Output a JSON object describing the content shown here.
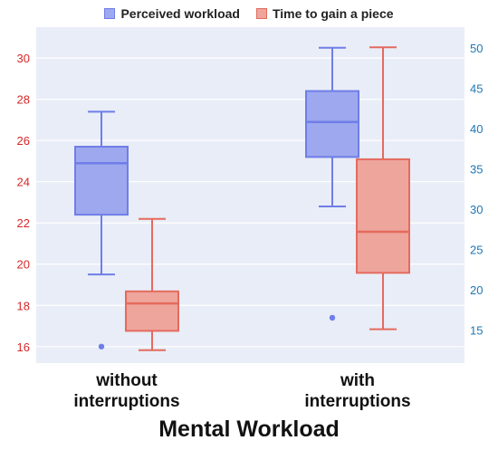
{
  "chart_data": {
    "type": "box",
    "title": "",
    "xlabel": "Mental Workload",
    "categories": [
      "without\ninterruptions",
      "with\ninterruptions"
    ],
    "legend_position": "top-center",
    "grid": true,
    "y_left": {
      "range": [
        15.2,
        31.5
      ],
      "ticks": [
        16,
        18,
        20,
        22,
        24,
        26,
        28,
        30
      ],
      "color": "#d62728"
    },
    "y_right": {
      "range": [
        10.9,
        52.6
      ],
      "ticks": [
        15,
        20,
        25,
        30,
        35,
        40,
        45,
        50
      ],
      "color": "#1f77b4"
    },
    "series": [
      {
        "name": "Perceived workload",
        "axis": "left",
        "fill": "#9ea8ee",
        "stroke": "#6f7ee8",
        "boxes": [
          {
            "category": "without\ninterruptions",
            "lowerfence": 19.5,
            "q1": 22.4,
            "median": 24.9,
            "q3": 25.7,
            "upperfence": 27.4,
            "outliers": [
              16.0
            ]
          },
          {
            "category": "with\ninterruptions",
            "lowerfence": 22.8,
            "q1": 25.2,
            "median": 26.9,
            "q3": 28.4,
            "upperfence": 30.5,
            "outliers": [
              17.4
            ]
          }
        ]
      },
      {
        "name": "Time to gain a piece",
        "axis": "right",
        "fill": "#eea59c",
        "stroke": "#e46b5e",
        "boxes": [
          {
            "category": "without\ninterruptions",
            "lowerfence": 12.5,
            "q1": 14.9,
            "median": 18.3,
            "q3": 19.8,
            "upperfence": 28.8,
            "outliers": []
          },
          {
            "category": "with\ninterruptions",
            "lowerfence": 15.1,
            "q1": 22.1,
            "median": 27.2,
            "q3": 36.2,
            "upperfence": 50.1,
            "outliers": []
          }
        ]
      }
    ]
  }
}
